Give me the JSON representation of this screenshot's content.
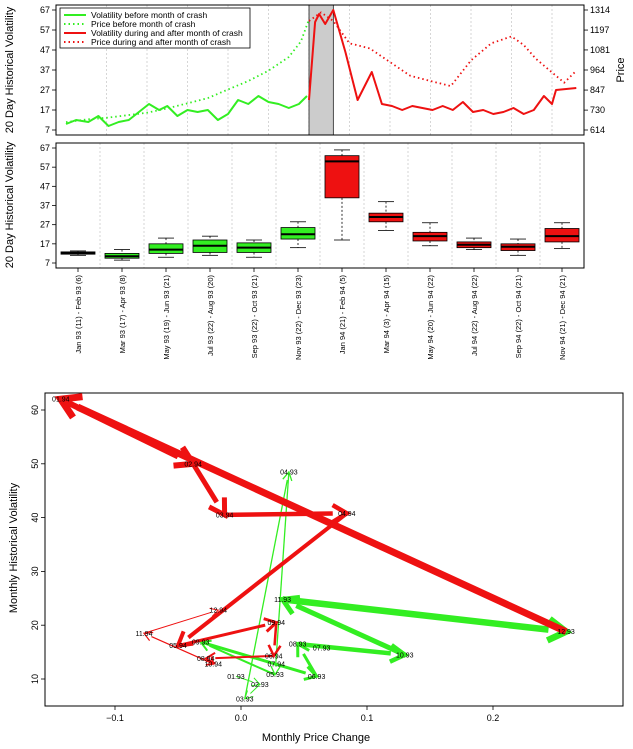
{
  "colors": {
    "before": "#33ee22",
    "during": "#ee1111",
    "shade": "#cccccc",
    "grid": "#bbbbbb"
  },
  "chart_data": [
    {
      "id": "top",
      "type": "line",
      "ylabel": "20 Day Historical Volatility",
      "ylabel2": "Price",
      "y_ticks": [
        "7",
        "17",
        "27",
        "37",
        "47",
        "57",
        "67"
      ],
      "y2_ticks": [
        "614",
        "730",
        "847",
        "964",
        "1081",
        "1197",
        "1314"
      ],
      "ylim": [
        7,
        67
      ],
      "y2lim": [
        614,
        1314
      ],
      "legend": [
        {
          "label": "Volatility before month of crash",
          "style": "solid",
          "color": "before"
        },
        {
          "label": "Price before month of crash",
          "style": "dotted",
          "color": "before"
        },
        {
          "label": "Volatility during and after month of crash",
          "style": "solid",
          "color": "during"
        },
        {
          "label": "Price during and after month of crash",
          "style": "dotted",
          "color": "during"
        }
      ],
      "crash_window": [
        6,
        6.6
      ],
      "series": [
        {
          "name": "vol_before",
          "values": [
            [
              0,
              10
            ],
            [
              0.25,
              12
            ],
            [
              0.55,
              11
            ],
            [
              0.8,
              14
            ],
            [
              1.05,
              9
            ],
            [
              1.3,
              11
            ],
            [
              1.55,
              12
            ],
            [
              1.8,
              16
            ],
            [
              2.05,
              20
            ],
            [
              2.3,
              17
            ],
            [
              2.5,
              19
            ],
            [
              2.75,
              14
            ],
            [
              3.0,
              17
            ],
            [
              3.25,
              16
            ],
            [
              3.5,
              17
            ],
            [
              3.75,
              12
            ],
            [
              4.0,
              15
            ],
            [
              4.25,
              22
            ],
            [
              4.5,
              20
            ],
            [
              4.75,
              24
            ],
            [
              5.0,
              21
            ],
            [
              5.25,
              20
            ],
            [
              5.5,
              18
            ],
            [
              5.75,
              20
            ],
            [
              5.95,
              24
            ]
          ]
        },
        {
          "name": "price_before",
          "values": [
            [
              0,
              660
            ],
            [
              0.5,
              675
            ],
            [
              1.0,
              685
            ],
            [
              1.5,
              700
            ],
            [
              2.0,
              715
            ],
            [
              2.5,
              740
            ],
            [
              3.0,
              770
            ],
            [
              3.5,
              800
            ],
            [
              4.0,
              850
            ],
            [
              4.5,
              900
            ],
            [
              5.0,
              960
            ],
            [
              5.5,
              1040
            ],
            [
              5.8,
              1130
            ],
            [
              6.0,
              1260
            ]
          ]
        },
        {
          "name": "vol_during",
          "values": [
            [
              6.0,
              22
            ],
            [
              6.15,
              61
            ],
            [
              6.25,
              65
            ],
            [
              6.4,
              60
            ],
            [
              6.6,
              67
            ],
            [
              6.9,
              46
            ],
            [
              7.2,
              22
            ],
            [
              7.55,
              36
            ],
            [
              7.8,
              20
            ],
            [
              8.05,
              19
            ],
            [
              8.3,
              17
            ],
            [
              8.55,
              19
            ],
            [
              8.8,
              18
            ],
            [
              9.05,
              17
            ],
            [
              9.3,
              19
            ],
            [
              9.55,
              17
            ],
            [
              9.8,
              21
            ],
            [
              10.05,
              16
            ],
            [
              10.3,
              17
            ],
            [
              10.55,
              15
            ],
            [
              10.8,
              16
            ],
            [
              11.05,
              18
            ],
            [
              11.3,
              15
            ],
            [
              11.55,
              17
            ],
            [
              11.8,
              24
            ],
            [
              12.0,
              20
            ],
            [
              12.1,
              27
            ],
            [
              12.6,
              28
            ]
          ]
        },
        {
          "name": "price_during",
          "values": [
            [
              6.0,
              1250
            ],
            [
              6.3,
              1300
            ],
            [
              6.6,
              1250
            ],
            [
              7.0,
              1120
            ],
            [
              7.5,
              1090
            ],
            [
              8.0,
              1010
            ],
            [
              8.5,
              930
            ],
            [
              9.0,
              900
            ],
            [
              9.5,
              870
            ],
            [
              10.0,
              1020
            ],
            [
              10.5,
              1120
            ],
            [
              11.0,
              1160
            ],
            [
              11.3,
              1110
            ],
            [
              11.6,
              1030
            ],
            [
              12.0,
              950
            ],
            [
              12.3,
              890
            ],
            [
              12.6,
              960
            ]
          ]
        }
      ]
    },
    {
      "id": "mid",
      "type": "box",
      "ylabel": "20 Day Historical Volatility",
      "y_ticks": [
        "7",
        "17",
        "27",
        "37",
        "47",
        "57",
        "67"
      ],
      "ylim": [
        7,
        67
      ],
      "categories": [
        "Jan 93 (11) - Feb 93 (6)",
        "Mar 93 (17) - Apr 93 (8)",
        "May 93 (19) - Jun 93 (21)",
        "Jul 93 (22) - Aug 93 (20)",
        "Sep 93 (22) - Oct 93 (21)",
        "Nov 93 (22) - Dec 93 (23)",
        "Jan 94 (21) - Feb 94 (5)",
        "Mar 94 (3) - Apr 94 (15)",
        "May 94 (20) - Jun 94 (22)",
        "Jul 94 (22) - Aug 94 (22)",
        "Sep 94 (22) - Oct 94 (21)",
        "Nov 94 (21) - Dec 94 (21)"
      ],
      "boxes": [
        {
          "min": 11.0,
          "q1": 11.6,
          "med": 12.2,
          "q3": 12.8,
          "max": 13.3,
          "group": "before"
        },
        {
          "min": 8.5,
          "q1": 9.5,
          "med": 10.5,
          "q3": 12.0,
          "max": 14.0,
          "group": "before"
        },
        {
          "min": 10.0,
          "q1": 12.0,
          "med": 14.0,
          "q3": 17.0,
          "max": 20.0,
          "group": "before"
        },
        {
          "min": 11.0,
          "q1": 12.5,
          "med": 16.0,
          "q3": 19.0,
          "max": 21.0,
          "group": "before"
        },
        {
          "min": 10.0,
          "q1": 12.5,
          "med": 15.0,
          "q3": 17.5,
          "max": 19.0,
          "group": "before"
        },
        {
          "min": 15.0,
          "q1": 19.5,
          "med": 22.0,
          "q3": 25.5,
          "max": 28.5,
          "group": "before"
        },
        {
          "min": 19.0,
          "q1": 41.0,
          "med": 60.0,
          "q3": 63.0,
          "max": 66.0,
          "group": "during"
        },
        {
          "min": 24.0,
          "q1": 28.5,
          "med": 31.0,
          "q3": 33.0,
          "max": 39.0,
          "group": "during"
        },
        {
          "min": 16.0,
          "q1": 18.5,
          "med": 21.0,
          "q3": 23.0,
          "max": 28.0,
          "group": "during"
        },
        {
          "min": 14.0,
          "q1": 15.0,
          "med": 16.5,
          "q3": 18.0,
          "max": 20.0,
          "group": "during"
        },
        {
          "min": 11.0,
          "q1": 13.5,
          "med": 15.5,
          "q3": 17.0,
          "max": 19.5,
          "group": "during"
        },
        {
          "min": 14.5,
          "q1": 18.0,
          "med": 21.0,
          "q3": 25.0,
          "max": 28.0,
          "group": "during"
        }
      ]
    },
    {
      "id": "bottom",
      "type": "scatter",
      "xlabel": "Monthly Price Change",
      "ylabel": "Monthly Historical Volatility",
      "xlim": [
        -0.155,
        0.265
      ],
      "ylim": [
        5,
        64
      ],
      "x_ticks": [
        -0.1,
        0.0,
        0.1,
        0.2
      ],
      "x_tick_labels": [
        "−0.1",
        "0.0",
        "0.1",
        "0.2"
      ],
      "y_ticks": [
        10,
        20,
        30,
        40,
        50,
        60
      ],
      "y_tick_labels": [
        "10",
        "20",
        "30",
        "40",
        "50",
        "60"
      ],
      "points": [
        {
          "label": "01.93",
          "x": -0.004,
          "y": 10.5
        },
        {
          "label": "02.93",
          "x": 0.015,
          "y": 9.0
        },
        {
          "label": "03.93",
          "x": 0.003,
          "y": 6.3
        },
        {
          "label": "04.93",
          "x": 0.038,
          "y": 48.5
        },
        {
          "label": "05.93",
          "x": 0.027,
          "y": 10.8
        },
        {
          "label": "06.93",
          "x": 0.06,
          "y": 10.5
        },
        {
          "label": "07.93",
          "x": 0.064,
          "y": 15.8
        },
        {
          "label": "08.93",
          "x": 0.045,
          "y": 16.5
        },
        {
          "label": "09.93",
          "x": -0.032,
          "y": 16.9
        },
        {
          "label": "10.93",
          "x": 0.13,
          "y": 14.5
        },
        {
          "label": "11.93",
          "x": 0.033,
          "y": 24.8
        },
        {
          "label": "12.93",
          "x": 0.258,
          "y": 18.8
        },
        {
          "label": "01.94",
          "x": -0.143,
          "y": 62.0
        },
        {
          "label": "02.94",
          "x": -0.038,
          "y": 50.0
        },
        {
          "label": "03.94",
          "x": -0.013,
          "y": 40.5
        },
        {
          "label": "04.94",
          "x": 0.084,
          "y": 40.8
        },
        {
          "label": "05.94",
          "x": -0.05,
          "y": 16.2
        },
        {
          "label": "06.94",
          "x": 0.026,
          "y": 14.3
        },
        {
          "label": "07.94",
          "x": 0.028,
          "y": 12.8
        },
        {
          "label": "08.94",
          "x": -0.028,
          "y": 13.8
        },
        {
          "label": "09.94",
          "x": 0.028,
          "y": 20.5
        },
        {
          "label": "10.94",
          "x": -0.022,
          "y": 12.8
        },
        {
          "label": "11.94",
          "x": -0.077,
          "y": 18.5
        },
        {
          "label": "12.94",
          "x": -0.018,
          "y": 22.8
        }
      ],
      "arrows": [
        {
          "from": "01.93",
          "to": "02.93",
          "w": 1.0,
          "group": "before"
        },
        {
          "from": "02.93",
          "to": "03.93",
          "w": 1.0,
          "group": "before"
        },
        {
          "from": "03.93",
          "to": "04.93",
          "w": 1.3,
          "group": "before"
        },
        {
          "from": "04.93",
          "to": "05.93",
          "w": 1.3,
          "group": "before"
        },
        {
          "from": "05.93",
          "to": "09.93",
          "w": 2.0,
          "group": "before"
        },
        {
          "from": "09.93",
          "to": "06.93",
          "w": 3.0,
          "group": "before"
        },
        {
          "from": "06.93",
          "to": "08.93",
          "w": 3.0,
          "group": "before"
        },
        {
          "from": "08.93",
          "to": "10.93",
          "w": 4.5,
          "group": "before"
        },
        {
          "from": "10.93",
          "to": "11.93",
          "w": 5.0,
          "group": "before"
        },
        {
          "from": "11.93",
          "to": "12.93",
          "w": 6.5,
          "group": "before"
        },
        {
          "from": "12.93",
          "to": "01.94",
          "w": 7.0,
          "group": "during"
        },
        {
          "from": "01.94",
          "to": "02.94",
          "w": 6.0,
          "group": "during"
        },
        {
          "from": "02.94",
          "to": "03.94",
          "w": 5.0,
          "group": "during"
        },
        {
          "from": "03.94",
          "to": "04.94",
          "w": 4.5,
          "group": "during"
        },
        {
          "from": "04.94",
          "to": "05.94",
          "w": 4.0,
          "group": "during"
        },
        {
          "from": "05.94",
          "to": "09.94",
          "w": 3.0,
          "group": "during"
        },
        {
          "from": "09.94",
          "to": "06.94",
          "w": 2.5,
          "group": "during"
        },
        {
          "from": "06.94",
          "to": "08.94",
          "w": 2.0,
          "group": "during"
        },
        {
          "from": "08.94",
          "to": "10.94",
          "w": 1.8,
          "group": "during"
        },
        {
          "from": "10.94",
          "to": "11.94",
          "w": 1.2,
          "group": "during"
        },
        {
          "from": "11.94",
          "to": "12.94",
          "w": 1.0,
          "group": "during"
        }
      ]
    }
  ]
}
